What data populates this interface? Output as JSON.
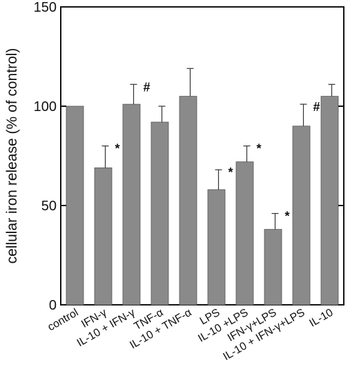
{
  "chart_data": {
    "type": "bar",
    "ylabel": "cellular iron release (% of control)",
    "xlabel": "",
    "ylim": [
      0,
      150
    ],
    "yticks": [
      0,
      50,
      100,
      150
    ],
    "categories": [
      "control",
      "IFN-γ",
      "IL-10 + IFN-γ",
      "TNF-α",
      "IL-10 + TNF-α",
      "LPS",
      "IL-10 +LPS",
      "IFN-γ+LPS",
      "IL-10 + IFN-γ+LPS",
      "IL-10"
    ],
    "values": [
      100,
      69,
      101,
      92,
      105,
      58,
      72,
      38,
      90,
      105
    ],
    "errors": [
      0,
      11,
      10,
      8,
      14,
      10,
      8,
      8,
      11,
      6
    ],
    "markers": [
      "",
      "*",
      "#",
      "",
      "",
      "*",
      "*",
      "*",
      "#",
      ""
    ],
    "grid": false,
    "bar_color": "#8a8a8a"
  }
}
